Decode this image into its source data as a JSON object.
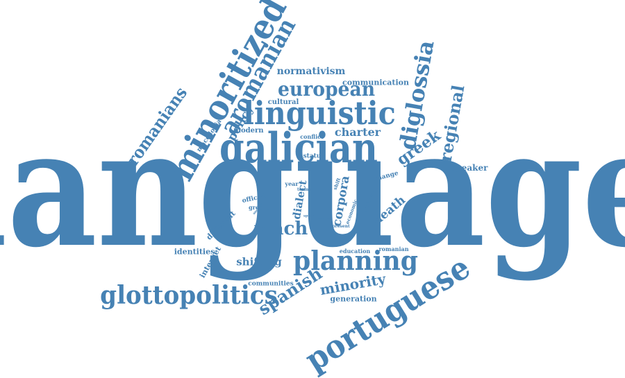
{
  "word_cloud": {
    "color": "#4682b4",
    "words": [
      "language",
      "galician",
      "linguistic",
      "minoritized",
      "aromanian",
      "european",
      "portuguese",
      "planning",
      "glottopolitics",
      "diglossia",
      "regional",
      "greek",
      "aromanians",
      "spanish",
      "vlach",
      "minority",
      "normativism",
      "communication",
      "policy",
      "charter",
      "corpora",
      "dialect",
      "death",
      "shifting",
      "speaker",
      "identities",
      "internet",
      "different",
      "communities",
      "generation",
      "conflict",
      "modern",
      "cultural",
      "macedonia",
      "status",
      "change",
      "official",
      "greece",
      "year",
      "economic",
      "profound",
      "education",
      "romanian",
      "society",
      "shift",
      "present",
      "term",
      "speak",
      "corpus"
    ]
  }
}
